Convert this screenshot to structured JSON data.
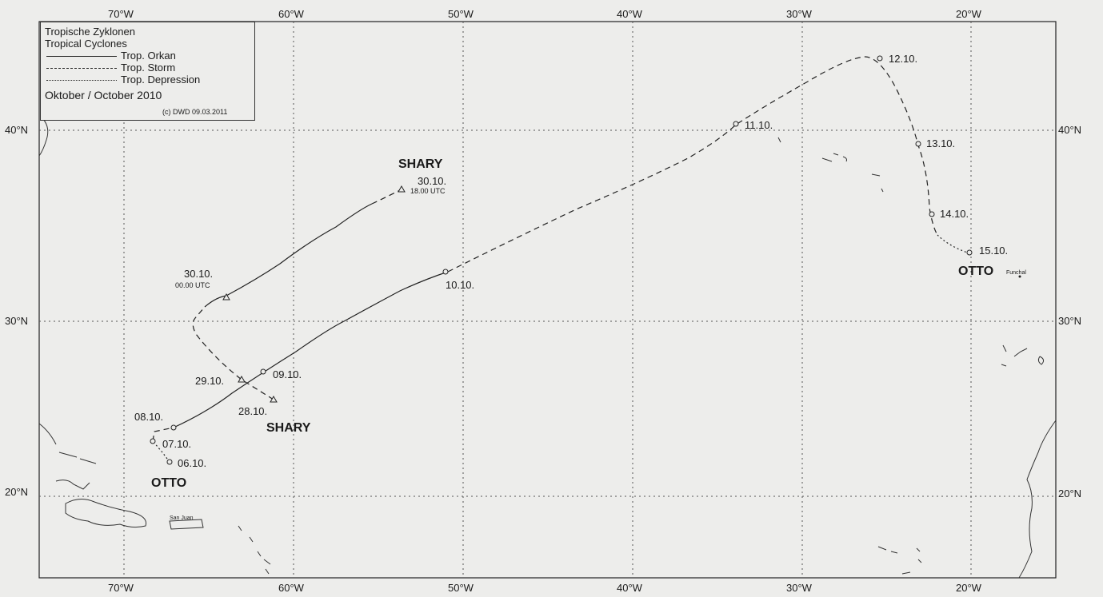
{
  "legend": {
    "title_de": "Tropische Zyklonen",
    "title_en": "Tropical Cyclones",
    "items": [
      {
        "label": "Trop. Orkan",
        "style": "solid"
      },
      {
        "label": "Trop. Storm",
        "style": "dashed"
      },
      {
        "label": "Trop. Depression",
        "style": "dotted"
      }
    ],
    "period": "Oktober / October 2010",
    "copyright": "(c) DWD 09.03.2011"
  },
  "axes": {
    "top_lon": [
      "70°W",
      "60°W",
      "50°W",
      "40°W",
      "30°W",
      "20°W"
    ],
    "bottom_lon": [
      "70°W",
      "60°W",
      "50°W",
      "40°W",
      "30°W",
      "20°W"
    ],
    "left_lat": [
      "40°N",
      "30°N",
      "20°N"
    ],
    "right_lat": [
      "40°N",
      "30°N",
      "20°N"
    ]
  },
  "storms": {
    "otto": {
      "name_start": "OTTO",
      "name_end": "OTTO",
      "points": {
        "p0610": "06.10.",
        "p0710": "07.10.",
        "p0810": "08.10.",
        "p0910": "09.10.",
        "p1010": "10.10.",
        "p1110": "11.10.",
        "p1210": "12.10.",
        "p1310": "13.10.",
        "p1410": "14.10.",
        "p1510": "15.10."
      }
    },
    "shary": {
      "name_start": "SHARY",
      "name_end": "SHARY",
      "points": {
        "p2810": "28.10.",
        "p2910": "29.10.",
        "p3010a": "30.10.",
        "p3010a_time": "00.00 UTC",
        "p3010b": "30.10.",
        "p3010b_time": "18.00 UTC"
      }
    }
  },
  "places": {
    "funchal": "Funchal",
    "san_juan": "San Juan"
  },
  "colors": {
    "background": "#ededeb",
    "ink": "#1a1a1a",
    "grid": "#555555"
  }
}
